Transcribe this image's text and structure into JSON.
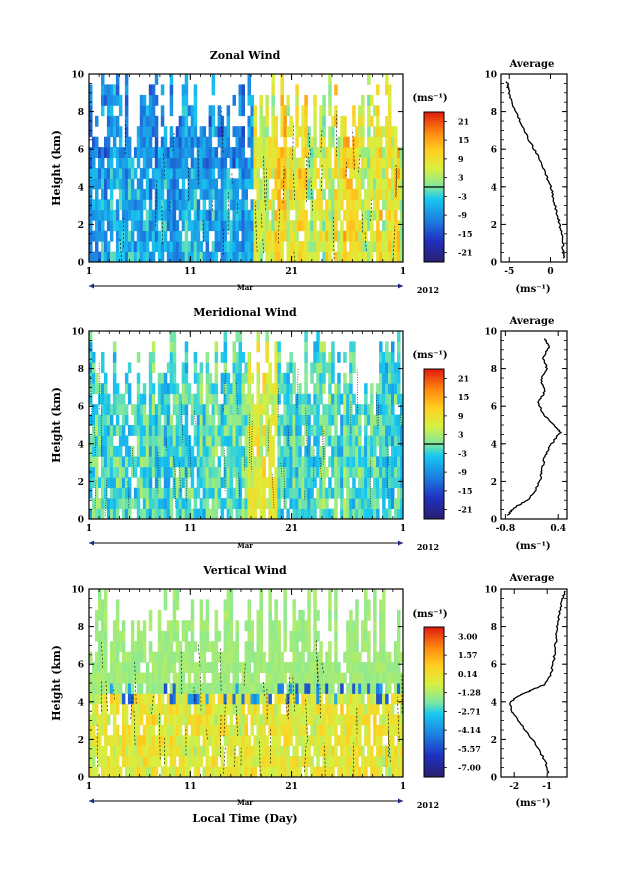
{
  "footer": {
    "x_title": "Local Time (Day)"
  },
  "chart_data": [
    {
      "type": "heatmap",
      "title": "Zonal Wind",
      "ylabel": "Height (km)",
      "ylim": [
        0,
        10
      ],
      "y_ticks": [
        "0",
        "2",
        "4",
        "6",
        "8",
        "10"
      ],
      "x_ticks": [
        "1",
        "11",
        "21",
        "1"
      ],
      "x_month": "Mar",
      "year": "2012",
      "colorbar": {
        "unit": "(ms⁻¹)",
        "labels": [
          "21",
          "15",
          "9",
          "3",
          "-3",
          "-9",
          "-15",
          "-21"
        ],
        "range": [
          -24,
          24
        ],
        "zero_line_at": 0
      },
      "profile": {
        "title": "Average",
        "xlabel": "(ms⁻¹)",
        "x_ticks": [
          "-5",
          "0"
        ],
        "x_tick_values": [
          -5,
          0
        ],
        "xlim": [
          -6,
          2
        ],
        "ylim": [
          0,
          10
        ],
        "y_ticks": [
          "0",
          "2",
          "4",
          "6",
          "8",
          "10"
        ],
        "points": [
          [
            1.6,
            0.2
          ],
          [
            1.5,
            0.8
          ],
          [
            1.4,
            1.4
          ],
          [
            1.1,
            2.0
          ],
          [
            0.8,
            2.6
          ],
          [
            0.4,
            3.2
          ],
          [
            0.2,
            3.7
          ],
          [
            -0.1,
            4.2
          ],
          [
            -0.7,
            4.8
          ],
          [
            -1.5,
            5.6
          ],
          [
            -2.5,
            6.4
          ],
          [
            -3.4,
            7.2
          ],
          [
            -4.2,
            8.0
          ],
          [
            -4.8,
            8.6
          ],
          [
            -5.1,
            9.2
          ],
          [
            -5.3,
            9.6
          ]
        ]
      }
    },
    {
      "type": "heatmap",
      "title": "Meridional Wind",
      "ylabel": "Height (km)",
      "ylim": [
        0,
        10
      ],
      "y_ticks": [
        "0",
        "2",
        "4",
        "6",
        "8",
        "10"
      ],
      "x_ticks": [
        "1",
        "11",
        "21",
        "1"
      ],
      "x_month": "Mar",
      "year": "2012",
      "colorbar": {
        "unit": "(ms⁻¹)",
        "labels": [
          "21",
          "15",
          "9",
          "3",
          "-3",
          "-9",
          "-15",
          "-21"
        ],
        "range": [
          -24,
          24
        ],
        "zero_line_at": 0
      },
      "profile": {
        "title": "Average",
        "xlabel": "(ms⁻¹)",
        "x_ticks": [
          "-0.8",
          "0.4"
        ],
        "x_tick_values": [
          -0.8,
          0.4
        ],
        "xlim": [
          -0.9,
          0.6
        ],
        "ylim": [
          0,
          10
        ],
        "y_ticks": [
          "0",
          "2",
          "4",
          "6",
          "8",
          "10"
        ],
        "points": [
          [
            -0.75,
            0.2
          ],
          [
            -0.6,
            0.6
          ],
          [
            -0.3,
            1.0
          ],
          [
            -0.1,
            1.6
          ],
          [
            0.0,
            2.2
          ],
          [
            0.05,
            2.8
          ],
          [
            0.1,
            3.4
          ],
          [
            0.25,
            4.0
          ],
          [
            0.45,
            4.6
          ],
          [
            0.3,
            5.0
          ],
          [
            0.05,
            5.6
          ],
          [
            -0.05,
            6.2
          ],
          [
            0.1,
            6.8
          ],
          [
            0.0,
            7.4
          ],
          [
            0.15,
            8.0
          ],
          [
            0.05,
            8.6
          ],
          [
            0.2,
            9.2
          ],
          [
            0.1,
            9.6
          ]
        ]
      }
    },
    {
      "type": "heatmap",
      "title": "Vertical Wind",
      "ylabel": "Height (km)",
      "ylim": [
        0,
        10
      ],
      "y_ticks": [
        "0",
        "2",
        "4",
        "6",
        "8",
        "10"
      ],
      "x_ticks": [
        "1",
        "11",
        "21",
        "1"
      ],
      "x_month": "Mar",
      "year": "2012",
      "colorbar": {
        "unit": "(ms⁻¹)",
        "labels": [
          "3.00",
          "1.57",
          "0.14",
          "-1.28",
          "-2.71",
          "-4.14",
          "-5.57",
          "-7.00"
        ],
        "range": [
          -8,
          4
        ],
        "zero_line_at": null
      },
      "profile": {
        "title": "Average",
        "xlabel": "(ms⁻¹)",
        "x_ticks": [
          "-2",
          "-1"
        ],
        "x_tick_values": [
          -2,
          -1
        ],
        "xlim": [
          -2.4,
          -0.4
        ],
        "ylim": [
          0,
          10
        ],
        "y_ticks": [
          "0",
          "2",
          "4",
          "6",
          "8",
          "10"
        ],
        "points": [
          [
            -0.95,
            0.2
          ],
          [
            -1.05,
            0.8
          ],
          [
            -1.3,
            1.6
          ],
          [
            -1.7,
            2.6
          ],
          [
            -2.05,
            3.4
          ],
          [
            -2.15,
            3.9
          ],
          [
            -1.9,
            4.3
          ],
          [
            -1.5,
            4.6
          ],
          [
            -1.1,
            4.9
          ],
          [
            -0.9,
            5.4
          ],
          [
            -0.8,
            6.2
          ],
          [
            -0.75,
            7.0
          ],
          [
            -0.7,
            7.8
          ],
          [
            -0.65,
            8.6
          ],
          [
            -0.55,
            9.4
          ],
          [
            -0.45,
            9.9
          ]
        ]
      }
    }
  ]
}
